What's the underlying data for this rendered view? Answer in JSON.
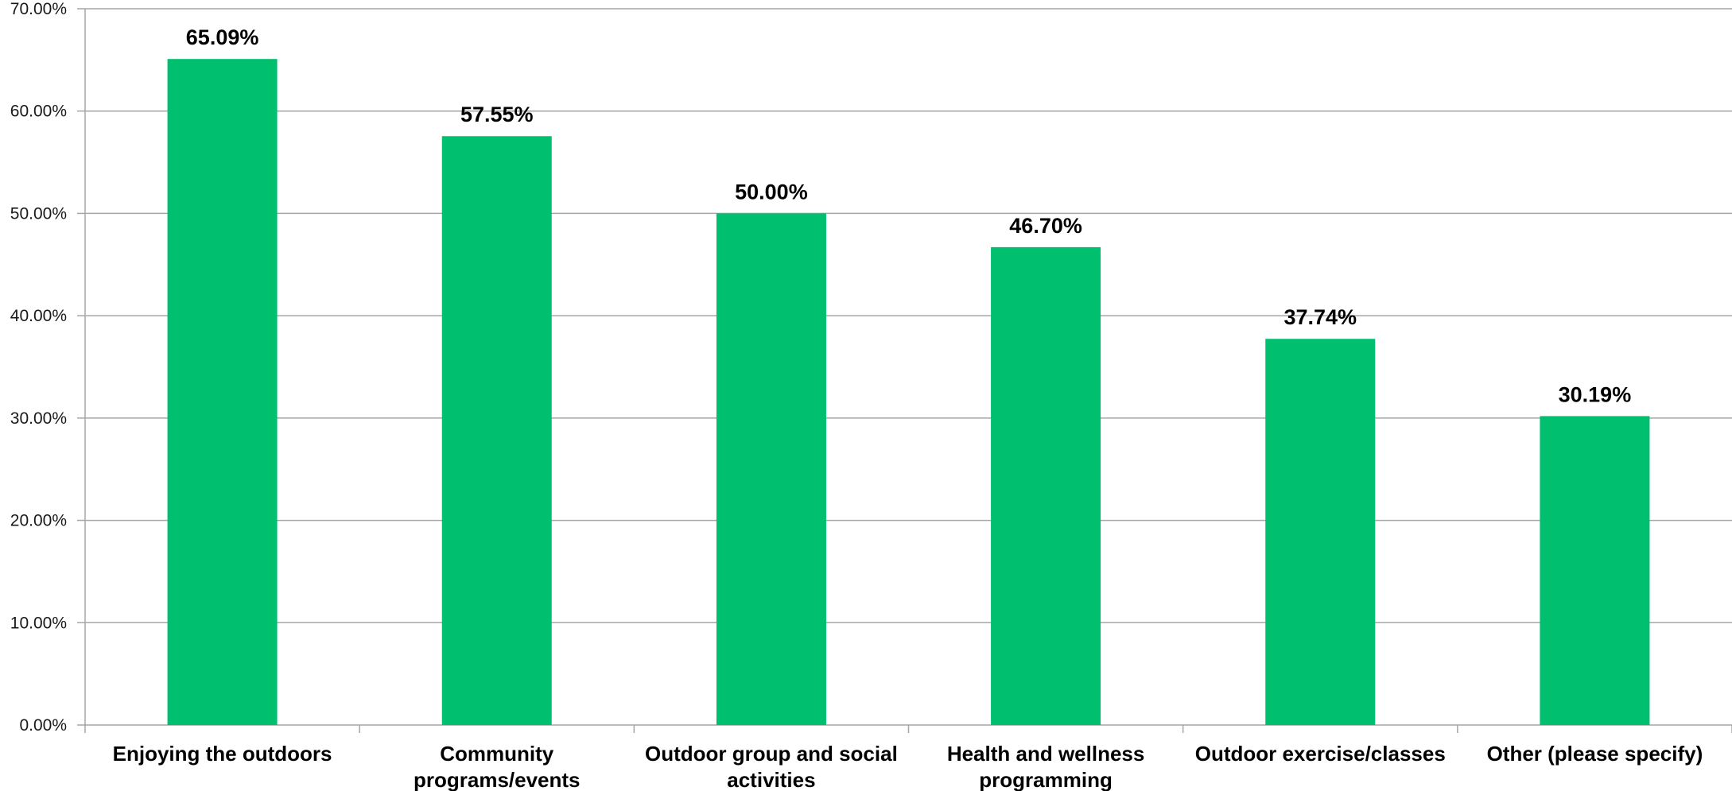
{
  "chart_data": {
    "type": "bar",
    "categories": [
      "Enjoying the outdoors",
      "Community programs/events",
      "Outdoor group and social activities",
      "Health and wellness programming",
      "Outdoor exercise/classes",
      "Other (please specify)"
    ],
    "category_lines": [
      [
        "Enjoying the outdoors"
      ],
      [
        "Community",
        "programs/events"
      ],
      [
        "Outdoor group and social",
        "activities"
      ],
      [
        "Health and wellness",
        "programming"
      ],
      [
        "Outdoor exercise/classes"
      ],
      [
        "Other (please specify)"
      ]
    ],
    "values": [
      65.09,
      57.55,
      50.0,
      46.7,
      37.74,
      30.19
    ],
    "data_labels": [
      "65.09%",
      "57.55%",
      "50.00%",
      "46.70%",
      "37.74%",
      "30.19%"
    ],
    "ylim": [
      0,
      70
    ],
    "yticks": [
      0,
      10,
      20,
      30,
      40,
      50,
      60,
      70
    ],
    "ytick_labels": [
      "0.00%",
      "10.00%",
      "20.00%",
      "30.00%",
      "40.00%",
      "50.00%",
      "60.00%",
      "70.00%"
    ],
    "title": "",
    "xlabel": "",
    "ylabel": "",
    "grid": true,
    "legend": "none",
    "bar_color": "#00BF6F",
    "grid_color": "#A6A6A6",
    "axis_color": "#A6A6A6"
  }
}
